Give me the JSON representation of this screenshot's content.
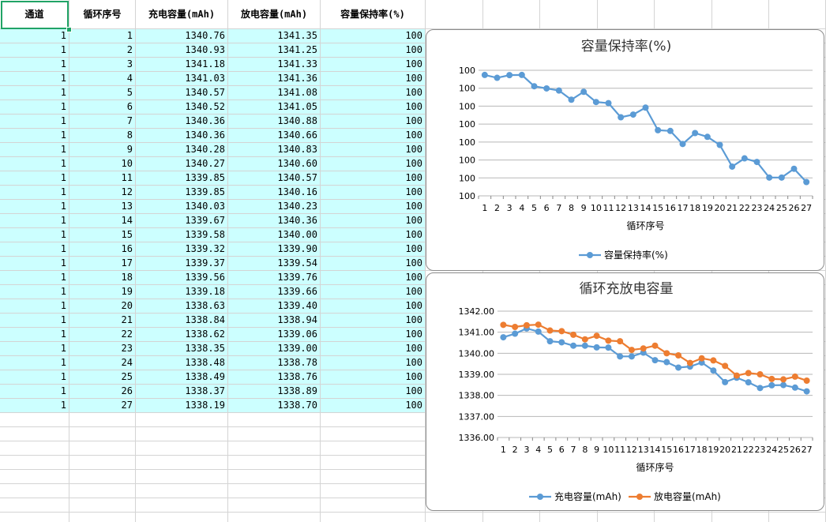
{
  "sheet": {
    "headers": [
      "通道",
      "循环序号",
      "充电容量(mAh)",
      "放电容量(mAh)",
      "容量保持率(%)"
    ],
    "rows": [
      [
        "1",
        "1",
        "1340.76",
        "1341.35",
        "100"
      ],
      [
        "1",
        "2",
        "1340.93",
        "1341.25",
        "100"
      ],
      [
        "1",
        "3",
        "1341.18",
        "1341.33",
        "100"
      ],
      [
        "1",
        "4",
        "1341.03",
        "1341.36",
        "100"
      ],
      [
        "1",
        "5",
        "1340.57",
        "1341.08",
        "100"
      ],
      [
        "1",
        "6",
        "1340.52",
        "1341.05",
        "100"
      ],
      [
        "1",
        "7",
        "1340.36",
        "1340.88",
        "100"
      ],
      [
        "1",
        "8",
        "1340.36",
        "1340.66",
        "100"
      ],
      [
        "1",
        "9",
        "1340.28",
        "1340.83",
        "100"
      ],
      [
        "1",
        "10",
        "1340.27",
        "1340.60",
        "100"
      ],
      [
        "1",
        "11",
        "1339.85",
        "1340.57",
        "100"
      ],
      [
        "1",
        "12",
        "1339.85",
        "1340.16",
        "100"
      ],
      [
        "1",
        "13",
        "1340.03",
        "1340.23",
        "100"
      ],
      [
        "1",
        "14",
        "1339.67",
        "1340.36",
        "100"
      ],
      [
        "1",
        "15",
        "1339.58",
        "1340.00",
        "100"
      ],
      [
        "1",
        "16",
        "1339.32",
        "1339.90",
        "100"
      ],
      [
        "1",
        "17",
        "1339.37",
        "1339.54",
        "100"
      ],
      [
        "1",
        "18",
        "1339.56",
        "1339.76",
        "100"
      ],
      [
        "1",
        "19",
        "1339.18",
        "1339.66",
        "100"
      ],
      [
        "1",
        "20",
        "1338.63",
        "1339.40",
        "100"
      ],
      [
        "1",
        "21",
        "1338.84",
        "1338.94",
        "100"
      ],
      [
        "1",
        "22",
        "1338.62",
        "1339.06",
        "100"
      ],
      [
        "1",
        "23",
        "1338.35",
        "1339.00",
        "100"
      ],
      [
        "1",
        "24",
        "1338.48",
        "1338.78",
        "100"
      ],
      [
        "1",
        "25",
        "1338.49",
        "1338.76",
        "100"
      ],
      [
        "1",
        "26",
        "1338.37",
        "1338.89",
        "100"
      ],
      [
        "1",
        "27",
        "1338.19",
        "1338.70",
        "100"
      ]
    ],
    "colors": {
      "cyan_fill": "#ccffff",
      "grid_line": "#d4d4d4",
      "selection": "#21a366"
    }
  },
  "chart_data": [
    {
      "type": "line",
      "title": "容量保持率(%)",
      "xlabel": "循环序号",
      "ylabel": "",
      "categories": [
        "1",
        "2",
        "3",
        "4",
        "5",
        "6",
        "7",
        "8",
        "9",
        "10",
        "11",
        "12",
        "13",
        "14",
        "15",
        "16",
        "17",
        "18",
        "19",
        "20",
        "21",
        "22",
        "23",
        "24",
        "25",
        "26",
        "27"
      ],
      "y_tick_labels": [
        "100",
        "100",
        "100",
        "100",
        "100",
        "100",
        "100",
        "100"
      ],
      "series": [
        {
          "name": "容量保持率(%)",
          "color": "#5b9bd5",
          "values": [
            100.0474,
            100.0458,
            100.0473,
            100.0474,
            100.0411,
            100.0399,
            100.0387,
            100.0336,
            100.038,
            100.0323,
            100.0317,
            100.0238,
            100.0253,
            100.0292,
            100.0166,
            100.0162,
            100.0089,
            100.015,
            100.0129,
            100.0084,
            99.9963,
            100.0009,
            99.9989,
            99.9902,
            99.9902,
            99.9951,
            99.9877
          ]
        }
      ],
      "ylim": [
        99.98,
        100.05
      ],
      "legend": "bottom",
      "grid": true
    },
    {
      "type": "line",
      "title": "循环充放电容量",
      "xlabel": "循环序号",
      "ylabel": "",
      "categories": [
        "1",
        "2",
        "3",
        "4",
        "5",
        "6",
        "7",
        "8",
        "9",
        "10",
        "11",
        "12",
        "13",
        "14",
        "15",
        "16",
        "17",
        "18",
        "19",
        "20",
        "21",
        "22",
        "23",
        "24",
        "25",
        "26",
        "27"
      ],
      "y_tick_labels": [
        "1336.00",
        "1337.00",
        "1338.00",
        "1339.00",
        "1340.00",
        "1341.00",
        "1342.00"
      ],
      "series": [
        {
          "name": "充电容量(mAh)",
          "color": "#5b9bd5",
          "values": [
            1340.76,
            1340.93,
            1341.18,
            1341.03,
            1340.57,
            1340.52,
            1340.36,
            1340.36,
            1340.28,
            1340.27,
            1339.85,
            1339.85,
            1340.03,
            1339.67,
            1339.58,
            1339.32,
            1339.37,
            1339.56,
            1339.18,
            1338.63,
            1338.84,
            1338.62,
            1338.35,
            1338.48,
            1338.49,
            1338.37,
            1338.19
          ]
        },
        {
          "name": "放电容量(mAh)",
          "color": "#ed7d31",
          "values": [
            1341.35,
            1341.25,
            1341.33,
            1341.36,
            1341.08,
            1341.05,
            1340.88,
            1340.66,
            1340.83,
            1340.6,
            1340.57,
            1340.16,
            1340.23,
            1340.36,
            1340.0,
            1339.9,
            1339.54,
            1339.76,
            1339.66,
            1339.4,
            1338.94,
            1339.06,
            1339.0,
            1338.78,
            1338.76,
            1338.89,
            1338.7
          ]
        }
      ],
      "ylim": [
        1336,
        1342
      ],
      "legend": "bottom",
      "grid": true
    }
  ]
}
